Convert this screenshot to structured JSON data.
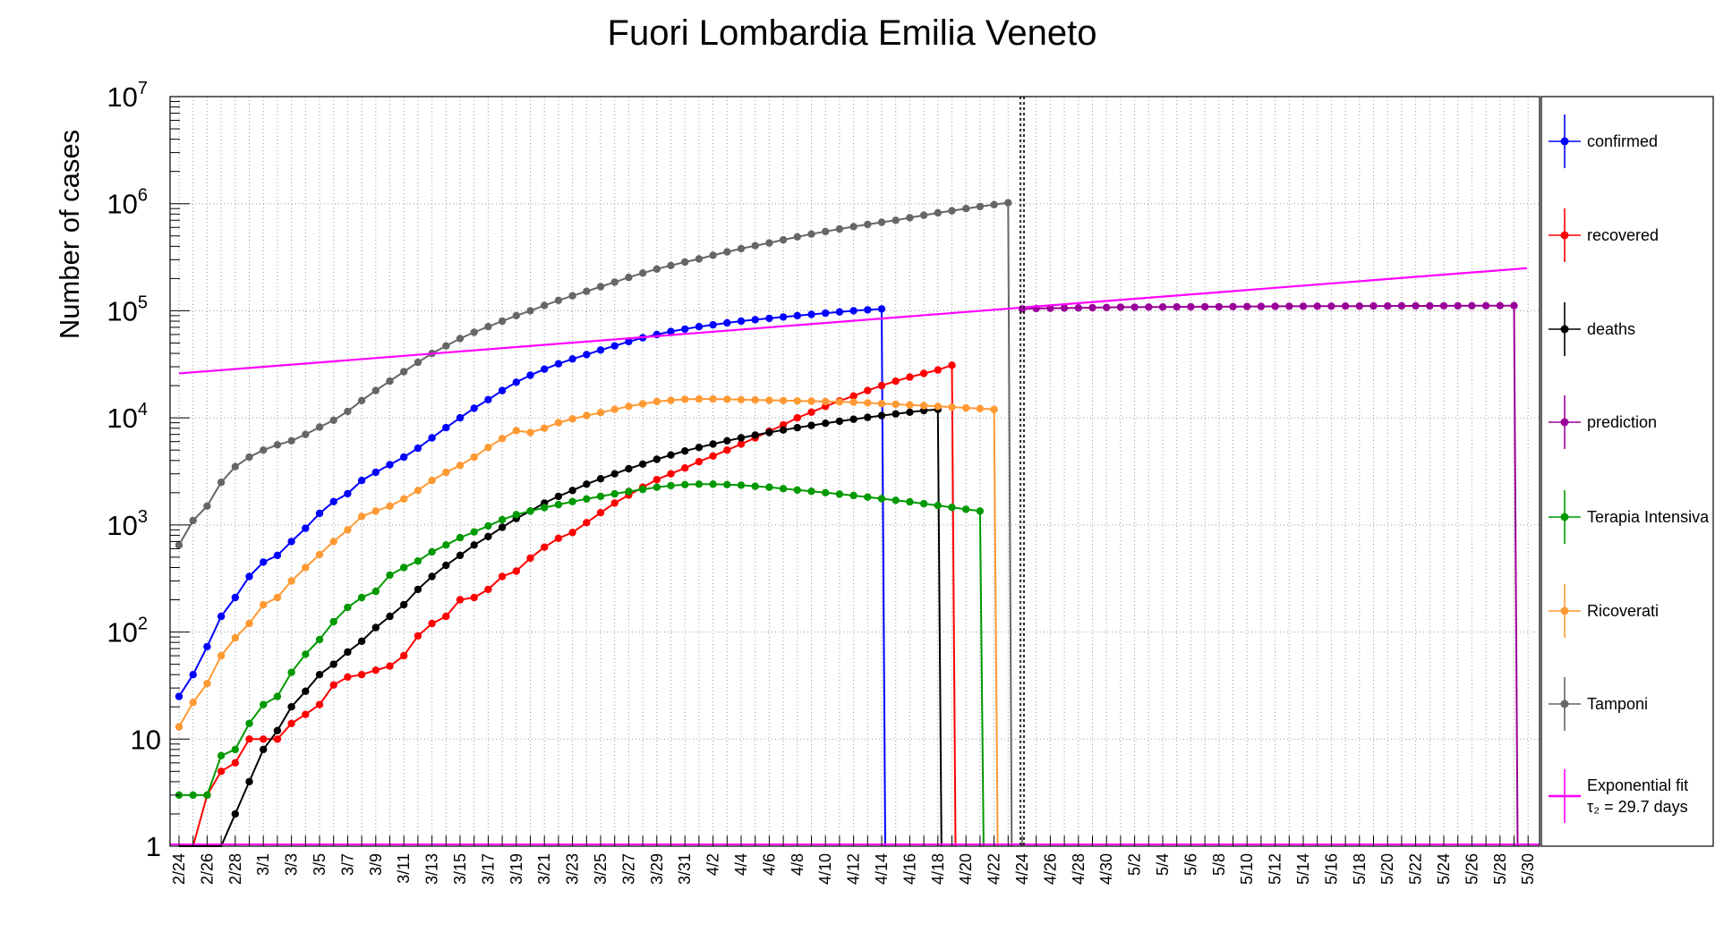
{
  "chart_data": {
    "type": "line",
    "title": "Fuori Lombardia Emilia Veneto",
    "ylabel": "Number of cases",
    "xlabel": "",
    "y_scale": "log",
    "ylim": [
      1,
      10000000
    ],
    "y_tick_labels": [
      "1",
      "10",
      "10",
      "10",
      "10",
      "10",
      "10",
      "10"
    ],
    "y_tick_exponents": [
      "",
      "",
      "2",
      "3",
      "4",
      "5",
      "6",
      "7"
    ],
    "x_start": "2/24",
    "x_end": "6/1",
    "x_tick_labels": [
      "2/24",
      "2/26",
      "2/28",
      "3/1",
      "3/3",
      "3/5",
      "3/7",
      "3/9",
      "3/11",
      "3/13",
      "3/15",
      "3/17",
      "3/19",
      "3/21",
      "3/23",
      "3/25",
      "3/27",
      "3/29",
      "3/31",
      "4/2",
      "4/4",
      "4/6",
      "4/8",
      "4/10",
      "4/12",
      "4/14",
      "4/16",
      "4/18",
      "4/20",
      "4/22",
      "4/24",
      "4/26",
      "4/28",
      "4/30",
      "5/2",
      "5/4",
      "5/6",
      "5/8",
      "5/10",
      "5/12",
      "5/14",
      "5/16",
      "5/18",
      "5/20",
      "5/22",
      "5/24",
      "5/26",
      "5/28",
      "5/30"
    ],
    "grid": true,
    "vertical_marker": "4/24",
    "legend_position": "right",
    "legend": [
      {
        "label": "confirmed",
        "color": "#0000ff"
      },
      {
        "label": "recovered",
        "color": "#ff0000"
      },
      {
        "label": "deaths",
        "color": "#000000"
      },
      {
        "label": "prediction",
        "color": "#990099"
      },
      {
        "label": "Terapia Intensiva",
        "color": "#009900"
      },
      {
        "label": "Ricoverati",
        "color": "#ff9933"
      },
      {
        "label": "Tamponi",
        "color": "#666666"
      },
      {
        "label": "Exponential fit",
        "label2": "τ₂ = 29.7 days",
        "color": "#ff00ff"
      }
    ],
    "series": [
      {
        "name": "confirmed",
        "color": "#0000ff",
        "values": [
          25,
          40,
          73,
          140,
          210,
          330,
          450,
          520,
          700,
          930,
          1280,
          1650,
          1960,
          2600,
          3100,
          3650,
          4300,
          5200,
          6500,
          8100,
          10000,
          12300,
          14800,
          18000,
          21500,
          25000,
          28500,
          32000,
          35500,
          39000,
          43000,
          47000,
          51500,
          56000,
          60000,
          64000,
          67500,
          71000,
          74000,
          77000,
          80000,
          82500,
          85000,
          87500,
          90000,
          92500,
          95000,
          97500,
          100000,
          102000,
          104000
        ]
      },
      {
        "name": "recovered",
        "color": "#ff0000",
        "values": [
          0.8,
          0.8,
          3,
          5,
          6,
          10,
          10,
          10,
          14,
          17,
          21,
          32,
          38,
          40,
          44,
          48,
          60,
          92,
          120,
          140,
          200,
          210,
          250,
          330,
          370,
          490,
          620,
          750,
          850,
          1050,
          1300,
          1600,
          1900,
          2250,
          2650,
          3000,
          3400,
          3900,
          4400,
          5000,
          5700,
          6500,
          7500,
          8600,
          10000,
          11300,
          12800,
          14400,
          16000,
          18000,
          20000,
          22000,
          24000,
          26000,
          28000,
          31000
        ]
      },
      {
        "name": "deaths",
        "color": "#000000",
        "values": [
          0.5,
          0.5,
          0.5,
          0.8,
          2,
          4,
          8,
          12,
          20,
          28,
          40,
          50,
          65,
          82,
          110,
          140,
          180,
          250,
          330,
          420,
          520,
          650,
          780,
          950,
          1150,
          1350,
          1600,
          1850,
          2100,
          2400,
          2700,
          3000,
          3350,
          3700,
          4100,
          4500,
          4900,
          5300,
          5700,
          6100,
          6500,
          6900,
          7300,
          7700,
          8100,
          8500,
          8900,
          9300,
          9700,
          10100,
          10500,
          10900,
          11300,
          11700,
          12000
        ]
      },
      {
        "name": "Terapia Intensiva",
        "color": "#009900",
        "values": [
          3,
          3,
          3,
          7,
          8,
          14,
          21,
          25,
          42,
          62,
          85,
          125,
          170,
          210,
          240,
          340,
          400,
          460,
          560,
          650,
          760,
          860,
          980,
          1120,
          1250,
          1350,
          1450,
          1550,
          1650,
          1750,
          1850,
          1950,
          2050,
          2150,
          2250,
          2330,
          2380,
          2400,
          2400,
          2380,
          2350,
          2300,
          2250,
          2180,
          2120,
          2060,
          2000,
          1940,
          1880,
          1820,
          1760,
          1700,
          1640,
          1580,
          1520,
          1460,
          1400,
          1350
        ]
      },
      {
        "name": "Ricoverati",
        "color": "#ff9933",
        "values": [
          13,
          22,
          33,
          60,
          88,
          120,
          180,
          210,
          300,
          400,
          530,
          700,
          900,
          1200,
          1350,
          1500,
          1750,
          2100,
          2600,
          3100,
          3600,
          4300,
          5300,
          6400,
          7600,
          7300,
          8000,
          9000,
          9800,
          10500,
          11200,
          12000,
          12800,
          13500,
          14200,
          14600,
          14900,
          15000,
          15000,
          14900,
          14800,
          14700,
          14600,
          14500,
          14400,
          14300,
          14200,
          14100,
          14000,
          13800,
          13600,
          13400,
          13200,
          13000,
          12800,
          12600,
          12400,
          12200,
          12000
        ]
      },
      {
        "name": "Tamponi",
        "color": "#666666",
        "values": [
          650,
          1100,
          1500,
          2500,
          3500,
          4300,
          5000,
          5600,
          6100,
          7000,
          8200,
          9500,
          11500,
          14500,
          18000,
          22000,
          27000,
          33000,
          40000,
          47000,
          55000,
          63000,
          71000,
          80000,
          90000,
          100000,
          112000,
          125000,
          138000,
          152000,
          168000,
          185000,
          205000,
          225000,
          245000,
          265000,
          285000,
          305000,
          330000,
          355000,
          380000,
          405000,
          430000,
          460000,
          490000,
          520000,
          550000,
          580000,
          610000,
          640000,
          670000,
          700000,
          740000,
          780000,
          820000,
          860000,
          900000,
          940000,
          980000,
          1020000
        ]
      },
      {
        "name": "prediction",
        "color": "#990099",
        "values": [
          104000,
          105000,
          105500,
          106000,
          106500,
          107000,
          107500,
          108000,
          108000,
          108200,
          108400,
          108600,
          108800,
          109000,
          109200,
          109400,
          109600,
          109800,
          110000,
          110100,
          110200,
          110300,
          110400,
          110500,
          110600,
          110700,
          110800,
          110900,
          111000,
          111100,
          111200,
          111300,
          111400,
          111500,
          111600,
          111700
        ]
      },
      {
        "name": "Exponential fit",
        "color": "#ff00ff",
        "y_start": 26000,
        "y_end": 250000,
        "tau2_days": 29.7
      }
    ]
  }
}
